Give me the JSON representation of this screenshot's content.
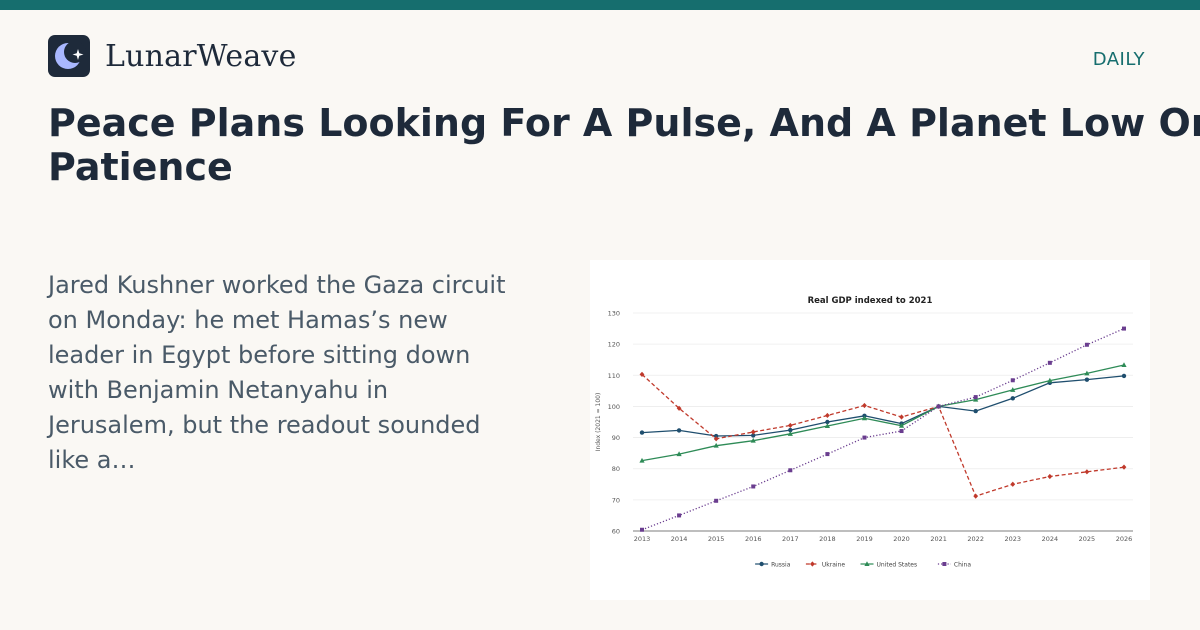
{
  "brand": {
    "name": "LunarWeave",
    "logo_icon": "moon-star-icon"
  },
  "section_label": "DAILY",
  "headline": "Peace Plans Looking For A Pulse, And A Planet Low On Patience",
  "excerpt": "Jared Kushner worked the Gaza circuit on Monday: he met Hamas’s new leader in Egypt before sitting down with Benjamin Netanyahu in Jerusalem, but the readout sounded like a…",
  "colors": {
    "accent": "#166e6e",
    "ink": "#1e2a3a",
    "background": "#faf8f4"
  },
  "chart_data": {
    "type": "line",
    "title": "Real GDP indexed to 2021",
    "xlabel": "",
    "ylabel": "Index (2021 = 100)",
    "ylim": [
      60,
      130
    ],
    "yticks": [
      60,
      70,
      80,
      90,
      100,
      110,
      120,
      130
    ],
    "grid": true,
    "legend_position": "bottom",
    "x": [
      2013,
      2014,
      2015,
      2016,
      2017,
      2018,
      2019,
      2020,
      2021,
      2022,
      2023,
      2024,
      2025,
      2026
    ],
    "series": [
      {
        "name": "Russia",
        "color": "#1f4e6e",
        "dash": "solid",
        "marker": "circle",
        "values": [
          91.6,
          92.3,
          90.5,
          90.7,
          92.4,
          95.0,
          97.0,
          94.5,
          100.0,
          98.5,
          102.6,
          107.6,
          108.6,
          109.8
        ]
      },
      {
        "name": "Ukraine",
        "color": "#c0392b",
        "dash": "dashed",
        "marker": "diamond",
        "values": [
          110.3,
          99.4,
          89.6,
          91.8,
          93.9,
          97.1,
          100.3,
          96.6,
          100.0,
          71.2,
          75.0,
          77.5,
          79.0,
          80.5
        ]
      },
      {
        "name": "United States",
        "color": "#2e8b57",
        "dash": "solid",
        "marker": "triangle",
        "values": [
          82.6,
          84.7,
          87.4,
          89.0,
          91.2,
          93.7,
          96.2,
          93.8,
          100.0,
          102.2,
          105.3,
          108.3,
          110.6,
          113.3
        ]
      },
      {
        "name": "China",
        "color": "#6a3d8f",
        "dash": "dotted",
        "marker": "square",
        "values": [
          60.4,
          65.0,
          69.7,
          74.3,
          79.5,
          84.7,
          90.0,
          92.1,
          100.0,
          103.0,
          108.4,
          114.0,
          119.8,
          125.0
        ]
      }
    ]
  }
}
